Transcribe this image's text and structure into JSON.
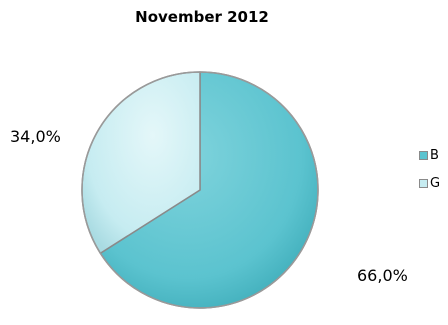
{
  "chart_data": {
    "type": "pie",
    "title": "November 2012",
    "slices": [
      {
        "name": "B",
        "value": 66.0,
        "label": "66,0%",
        "color": "#5bc3cf"
      },
      {
        "name": "G",
        "value": 34.0,
        "label": "34,0%",
        "color": "#c6ecf1"
      }
    ],
    "legend_position": "right"
  }
}
